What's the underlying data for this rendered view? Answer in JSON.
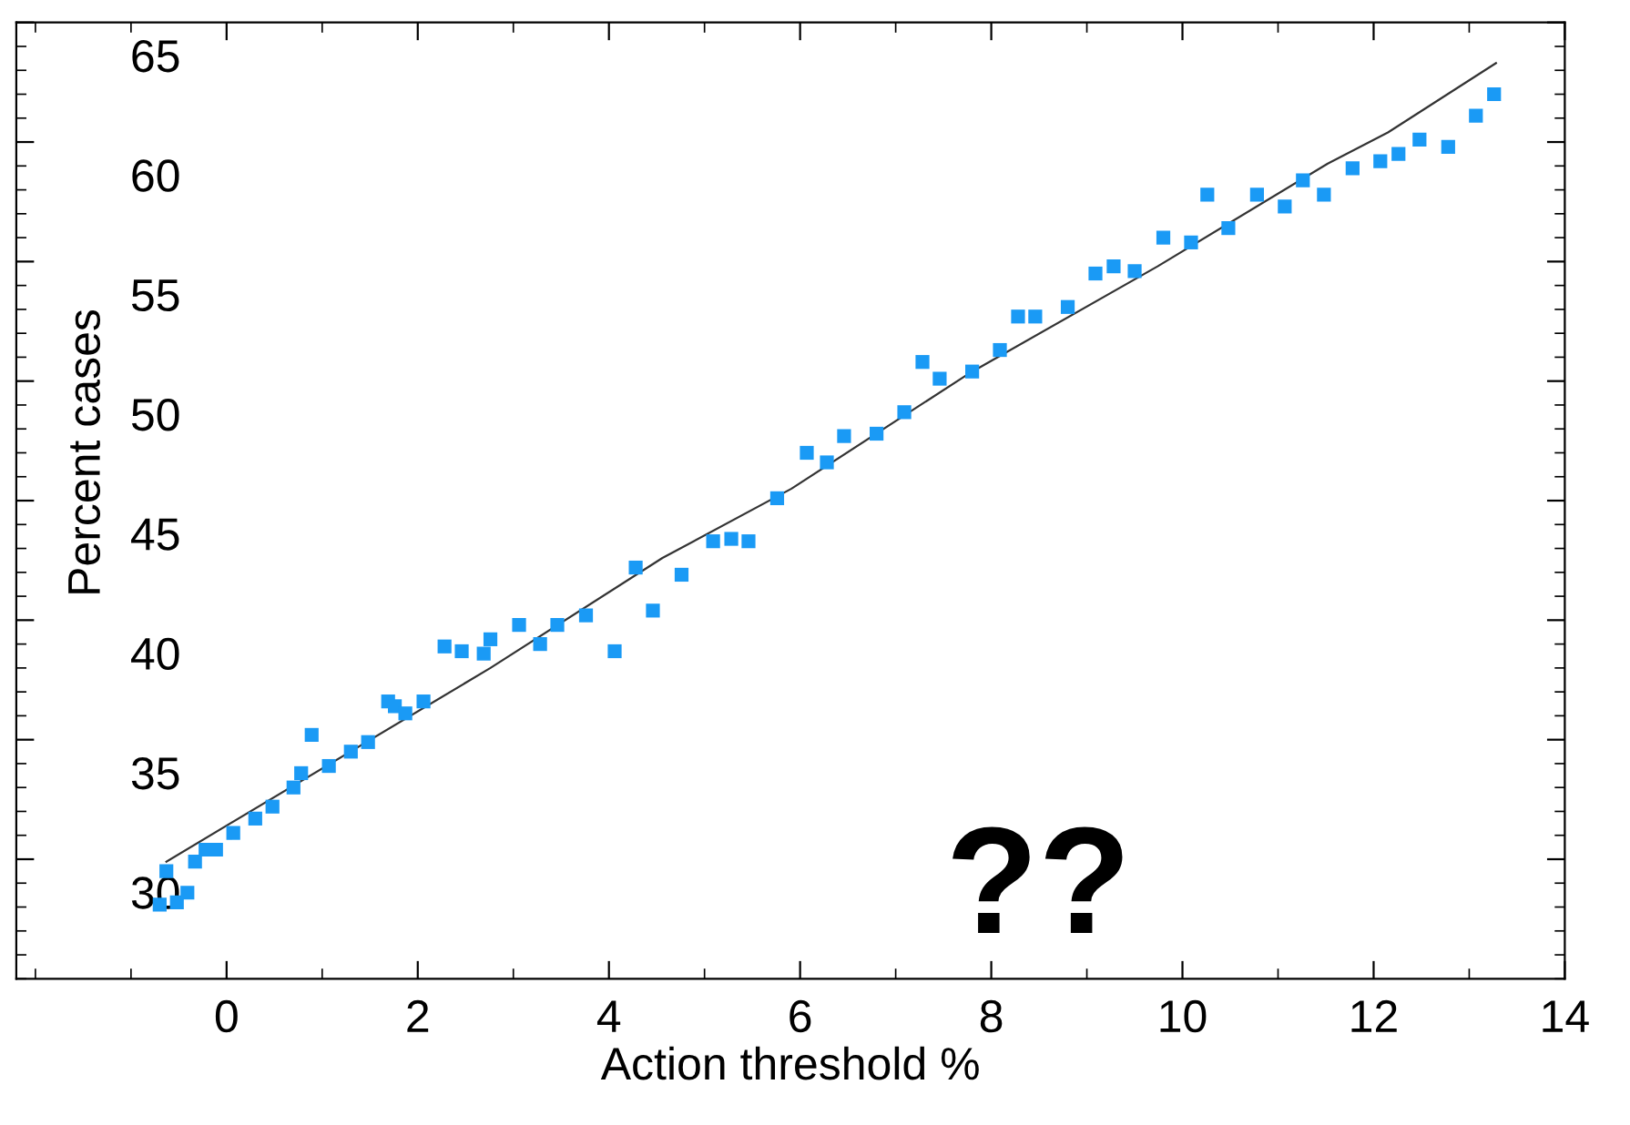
{
  "chart_data": {
    "type": "scatter",
    "xlabel": "Action threshold %",
    "ylabel": "Percent cases",
    "xlim": [
      -2.2,
      14
    ],
    "ylim": [
      25,
      65
    ],
    "xticks": [
      0,
      2,
      4,
      6,
      8,
      10,
      12,
      14
    ],
    "yticks": [
      30,
      35,
      40,
      45,
      50,
      55,
      60,
      65
    ],
    "grid": false,
    "annotations": [
      "??"
    ],
    "series": [
      {
        "color": "#1a9af5",
        "marker": "square",
        "x": [
          -0.7,
          -0.63,
          -0.52,
          -0.41,
          -0.33,
          -0.22,
          -0.11,
          0.07,
          0.3,
          0.48,
          0.7,
          0.78,
          0.89,
          1.07,
          1.3,
          1.48,
          1.69,
          1.76,
          1.87,
          2.06,
          2.28,
          2.46,
          2.69,
          2.76,
          3.06,
          3.28,
          3.46,
          3.76,
          4.06,
          4.28,
          4.46,
          4.76,
          5.09,
          5.28,
          5.46,
          5.76,
          6.07,
          6.28,
          6.46,
          6.8,
          7.09,
          7.28,
          7.46,
          7.8,
          8.09,
          8.28,
          8.46,
          8.8,
          9.09,
          9.28,
          9.5,
          9.8,
          10.09,
          10.26,
          10.48,
          10.78,
          11.07,
          11.26,
          11.48,
          11.78,
          12.07,
          12.26,
          12.48,
          12.78,
          13.07,
          13.26
        ],
        "values": [
          28.1,
          29.5,
          28.2,
          28.6,
          29.9,
          30.4,
          30.4,
          31.1,
          31.7,
          32.2,
          33.0,
          33.6,
          35.2,
          33.9,
          34.5,
          34.9,
          36.6,
          36.4,
          36.1,
          36.6,
          38.9,
          38.7,
          38.6,
          39.2,
          39.8,
          39.0,
          39.8,
          40.2,
          38.7,
          42.2,
          40.4,
          41.9,
          43.3,
          43.4,
          43.3,
          45.1,
          47.0,
          46.6,
          47.7,
          47.8,
          48.7,
          50.8,
          50.1,
          50.4,
          51.3,
          52.7,
          52.7,
          53.1,
          54.5,
          54.8,
          54.6,
          56.0,
          55.8,
          57.8,
          56.4,
          57.8,
          57.3,
          58.4,
          57.8,
          58.9,
          59.2,
          59.5,
          60.1,
          59.8,
          61.1,
          62.0
        ]
      },
      {
        "type": "line",
        "color": "#333333",
        "marker": "none",
        "line_style": "solid",
        "x": [
          -0.63,
          2.76,
          4.56,
          5.91,
          7.76,
          9.74,
          11.52,
          12.15,
          13.28
        ],
        "values": [
          29.9,
          38.0,
          42.6,
          45.5,
          50.3,
          54.8,
          59.1,
          60.4,
          63.3
        ]
      }
    ]
  }
}
